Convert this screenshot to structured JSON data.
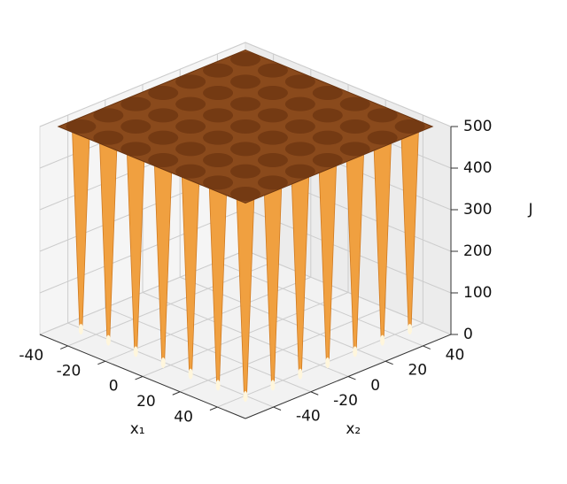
{
  "chart_data": {
    "type": "surface3d",
    "xlabel": "x₁",
    "ylabel": "x₂",
    "zlabel": "J",
    "xlim": [
      -55,
      55
    ],
    "ylim": [
      -55,
      55
    ],
    "zlim": [
      0,
      500
    ],
    "xticks": [
      -40,
      -20,
      0,
      20,
      40
    ],
    "yticks": [
      -40,
      -20,
      0,
      20,
      40
    ],
    "zticks": [
      0,
      100,
      200,
      300,
      400,
      500
    ],
    "color": "#8a4a1c",
    "well_color": "#f0a040",
    "grid": true
  }
}
